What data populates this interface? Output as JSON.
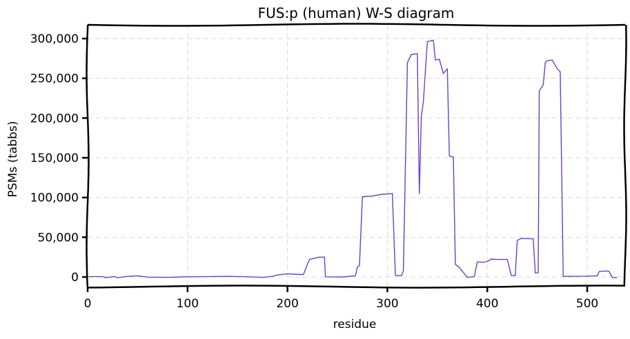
{
  "chart_data": {
    "type": "line",
    "title": "FUS:p (human) W-S diagram",
    "xlabel": "residue",
    "ylabel": "PSMs (tabbs)",
    "xlim": [
      0,
      540
    ],
    "ylim": [
      -12000,
      312000
    ],
    "xticks": [
      0,
      100,
      200,
      300,
      400,
      500
    ],
    "xtick_labels": [
      "0",
      "100",
      "200",
      "300",
      "400",
      "500"
    ],
    "yticks": [
      0,
      50000,
      100000,
      150000,
      200000,
      250000,
      300000
    ],
    "ytick_labels": [
      "0",
      "50,000",
      "100,000",
      "150,000",
      "200,000",
      "250,000",
      "300,000"
    ],
    "grid": true,
    "colors": {
      "line": "#6a3fc8",
      "grid": "#d9d9d9",
      "frame": "#000000"
    },
    "series": [
      {
        "x": [
          1,
          15,
          18,
          27,
          30,
          40,
          50,
          60,
          80,
          100,
          120,
          140,
          160,
          175,
          185,
          190,
          200,
          208,
          214,
          216,
          220,
          222,
          232,
          237,
          238,
          255,
          268,
          270,
          272,
          275,
          285,
          290,
          295,
          305,
          308,
          314,
          316,
          320,
          324,
          330,
          332,
          334,
          336,
          340,
          346,
          348,
          352,
          356,
          360,
          362,
          366,
          368,
          372,
          380,
          387,
          390,
          396,
          400,
          404,
          410,
          420,
          424,
          428,
          430,
          434,
          446,
          448,
          451,
          452,
          456,
          458,
          460,
          465,
          470,
          473,
          476,
          480,
          500,
          510,
          512,
          520,
          522,
          525,
          527,
          530
        ],
        "y": [
          500,
          500,
          -800,
          500,
          -1000,
          800,
          1500,
          -200,
          -500,
          300,
          500,
          800,
          300,
          -500,
          800,
          2500,
          4000,
          3500,
          3000,
          3200,
          16000,
          22000,
          25000,
          25000,
          200,
          0,
          1500,
          13000,
          14000,
          101000,
          102000,
          103000,
          104000,
          105000,
          2000,
          1500,
          8000,
          270000,
          280000,
          281000,
          105000,
          202000,
          220000,
          296000,
          298000,
          273000,
          274000,
          256000,
          262000,
          152000,
          151000,
          16000,
          12000,
          -500,
          500,
          19000,
          18500,
          19500,
          22500,
          22000,
          22000,
          2000,
          1800,
          46000,
          48500,
          48000,
          5000,
          5500,
          234000,
          242000,
          270000,
          272000,
          273000,
          262000,
          258000,
          500,
          800,
          1000,
          1500,
          7000,
          7500,
          7000,
          -500,
          -800,
          -600
        ]
      }
    ]
  }
}
